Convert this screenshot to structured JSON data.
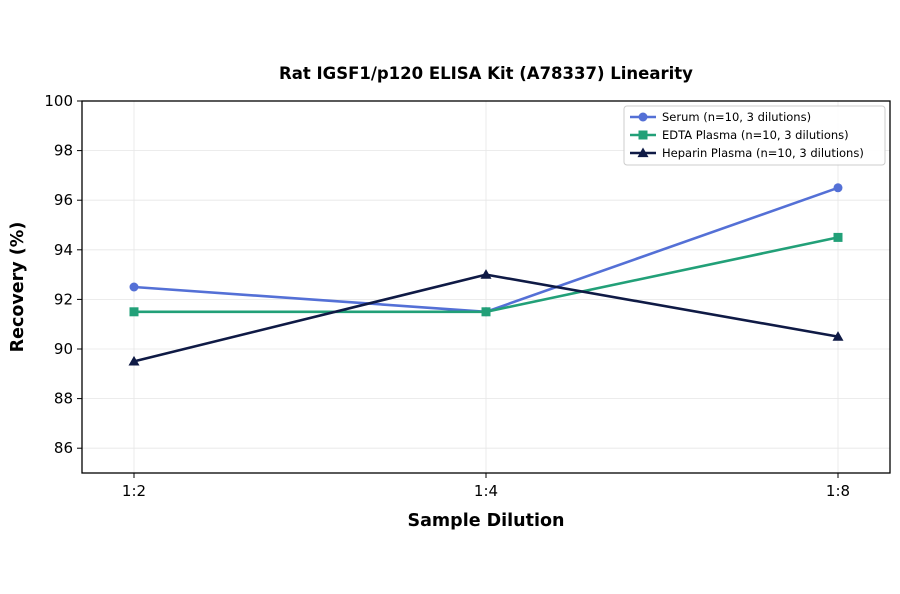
{
  "chart_data": {
    "type": "line",
    "title": "Rat IGSF1/p120 ELISA Kit (A78337) Linearity",
    "xlabel": "Sample Dilution",
    "ylabel": "Recovery (%)",
    "categories": [
      "1:2",
      "1:4",
      "1:8"
    ],
    "ylim": [
      85,
      100
    ],
    "yticks": [
      86,
      88,
      90,
      92,
      94,
      96,
      98,
      100
    ],
    "grid": true,
    "legend_position": "top-right",
    "series": [
      {
        "name": "Serum (n=10, 3 dilutions)",
        "values": [
          92.5,
          91.5,
          96.5
        ],
        "color": "#5470d6",
        "marker": "circle"
      },
      {
        "name": "EDTA Plasma (n=10, 3 dilutions)",
        "values": [
          91.5,
          91.5,
          94.5
        ],
        "color": "#22a078",
        "marker": "square"
      },
      {
        "name": "Heparin Plasma (n=10, 3 dilutions)",
        "values": [
          89.5,
          93.0,
          90.5
        ],
        "color": "#0f1a45",
        "marker": "triangle"
      }
    ]
  }
}
